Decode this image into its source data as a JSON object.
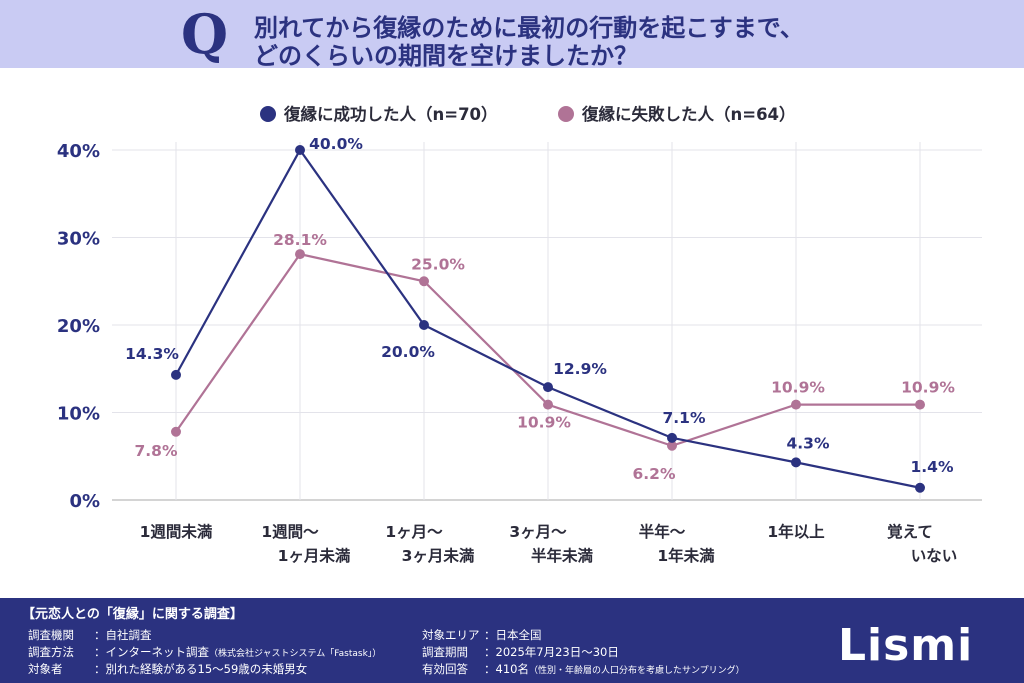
{
  "header": {
    "q_mark": "Q",
    "question_line1": "別れてから復縁のために最初の行動を起こすまで、",
    "question_line2": "どのくらいの期間を空けましたか？"
  },
  "chart_data": {
    "type": "line",
    "categories": [
      [
        "1週間未満"
      ],
      [
        "1週間〜",
        "1ヶ月未満"
      ],
      [
        "1ヶ月〜",
        "3ヶ月未満"
      ],
      [
        "3ヶ月〜",
        "半年未満"
      ],
      [
        "半年〜",
        "1年未満"
      ],
      [
        "1年以上"
      ],
      [
        "覚えて",
        "いない"
      ]
    ],
    "series": [
      {
        "name": "復縁に成功した人（n=70）",
        "color": "#2b3280",
        "values": [
          14.3,
          40.0,
          20.0,
          12.9,
          7.1,
          4.3,
          1.4
        ]
      },
      {
        "name": "復縁に失敗した人（n=64）",
        "color": "#b07396",
        "values": [
          7.8,
          28.1,
          25.0,
          10.9,
          6.2,
          10.9,
          10.9
        ]
      }
    ],
    "value_labels": [
      [
        "14.3%",
        "40.0%",
        "20.0%",
        "12.9%",
        "7.1%",
        "4.3%",
        "1.4%"
      ],
      [
        "7.8%",
        "28.1%",
        "25.0%",
        "10.9%",
        "6.2%",
        "10.9%",
        "10.9%"
      ]
    ],
    "ylim": [
      0,
      40
    ],
    "yticks": [
      0,
      10,
      20,
      30,
      40
    ],
    "ytick_labels": [
      "0%",
      "10%",
      "20%",
      "30%",
      "40%"
    ],
    "grid": true,
    "legend_position": "top"
  },
  "footer": {
    "survey_title": "【元恋人との「復縁」に関する調査】",
    "left_items": [
      {
        "label": "調査機関",
        "value": "：自社調査",
        "note": ""
      },
      {
        "label": "調査方法",
        "value": "：インターネット調査",
        "note": "（株式会社ジャストシステム「Fastask」）"
      },
      {
        "label": "対象者",
        "value": "：別れた経験がある15〜59歳の未婚男女",
        "note": ""
      }
    ],
    "right_items": [
      {
        "label": "対象エリア",
        "value": "：日本全国",
        "note": ""
      },
      {
        "label": "調査期間",
        "value": "：2025年7月23日〜30日",
        "note": ""
      },
      {
        "label": "有効回答",
        "value": "：410名",
        "note": "（性別・年齢層の人口分布を考慮したサンプリング）"
      }
    ],
    "logo_text": "Lismi"
  }
}
